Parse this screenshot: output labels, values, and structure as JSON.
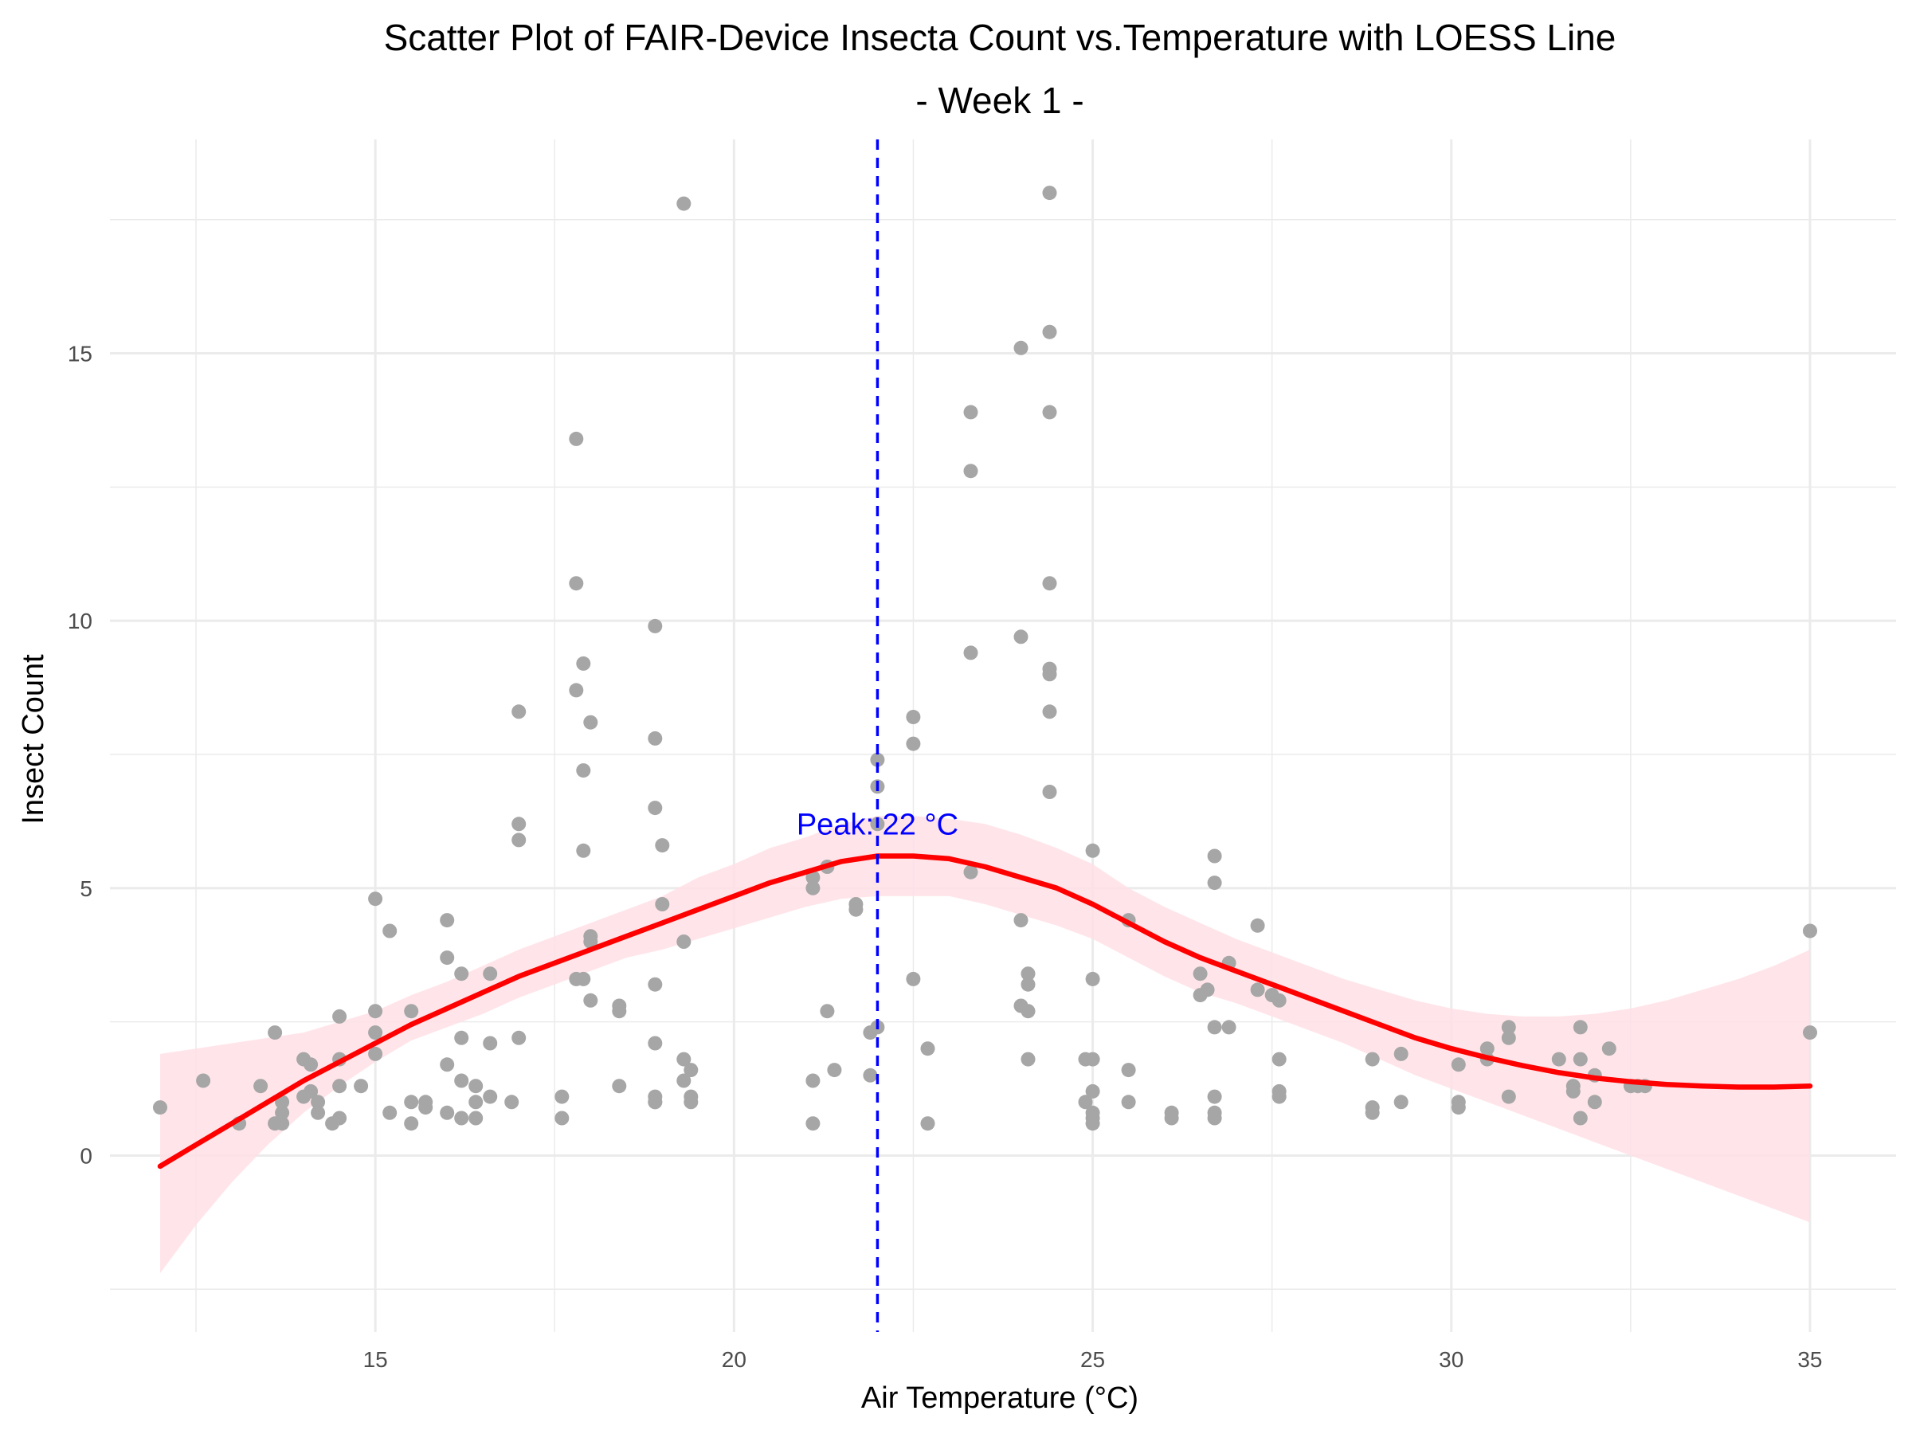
{
  "chart_data": {
    "type": "scatter",
    "title": "Scatter Plot of FAIR-Device Insecta Count vs.Temperature with LOESS Line",
    "subtitle": "- Week 1 -",
    "xlabel": "Air Temperature (°C)",
    "ylabel": "Insect Count",
    "xlim": [
      11.3,
      36.2
    ],
    "ylim": [
      -3.3,
      19.0
    ],
    "x_ticks": [
      15,
      20,
      25,
      30,
      35
    ],
    "y_ticks": [
      0,
      5,
      10,
      15
    ],
    "x_minor_ticks": [
      12.5,
      17.5,
      22.5,
      27.5,
      32.5
    ],
    "y_minor_ticks": [
      -2.5,
      2.5,
      7.5,
      12.5,
      17.5
    ],
    "grid": true,
    "legend": "none",
    "colors": {
      "points": "#a6a6a6",
      "loess": "#ff0000",
      "ribbon": "#ffe0e6",
      "peak_line": "#0000ff",
      "grid": "#ebebeb"
    },
    "points": [
      [
        12.0,
        0.9
      ],
      [
        12.6,
        1.4
      ],
      [
        13.1,
        0.6
      ],
      [
        13.4,
        1.3
      ],
      [
        13.6,
        2.3
      ],
      [
        13.6,
        0.6
      ],
      [
        13.7,
        0.8
      ],
      [
        13.7,
        1.0
      ],
      [
        13.7,
        0.6
      ],
      [
        14.0,
        1.8
      ],
      [
        14.0,
        1.1
      ],
      [
        14.1,
        1.7
      ],
      [
        14.1,
        1.2
      ],
      [
        14.2,
        1.0
      ],
      [
        14.2,
        0.8
      ],
      [
        14.4,
        0.6
      ],
      [
        14.5,
        2.6
      ],
      [
        14.5,
        1.8
      ],
      [
        14.5,
        1.3
      ],
      [
        14.5,
        0.7
      ],
      [
        14.8,
        1.3
      ],
      [
        15.0,
        4.8
      ],
      [
        15.0,
        2.7
      ],
      [
        15.0,
        2.3
      ],
      [
        15.0,
        1.9
      ],
      [
        15.2,
        4.2
      ],
      [
        15.2,
        0.8
      ],
      [
        15.5,
        2.7
      ],
      [
        15.5,
        1.0
      ],
      [
        15.5,
        0.6
      ],
      [
        15.7,
        0.9
      ],
      [
        15.7,
        1.0
      ],
      [
        16.0,
        4.4
      ],
      [
        16.0,
        3.7
      ],
      [
        16.0,
        1.7
      ],
      [
        16.0,
        0.8
      ],
      [
        16.2,
        3.4
      ],
      [
        16.2,
        2.2
      ],
      [
        16.2,
        1.4
      ],
      [
        16.2,
        0.7
      ],
      [
        16.4,
        1.3
      ],
      [
        16.4,
        1.0
      ],
      [
        16.4,
        0.7
      ],
      [
        16.6,
        3.4
      ],
      [
        16.6,
        2.1
      ],
      [
        16.6,
        1.1
      ],
      [
        16.9,
        1.0
      ],
      [
        17.0,
        8.3
      ],
      [
        17.0,
        6.2
      ],
      [
        17.0,
        5.9
      ],
      [
        17.0,
        2.2
      ],
      [
        17.6,
        1.1
      ],
      [
        17.6,
        0.7
      ],
      [
        17.8,
        13.4
      ],
      [
        17.8,
        10.7
      ],
      [
        17.8,
        8.7
      ],
      [
        17.8,
        3.3
      ],
      [
        17.9,
        9.2
      ],
      [
        17.9,
        7.2
      ],
      [
        17.9,
        5.7
      ],
      [
        17.9,
        3.3
      ],
      [
        18.0,
        8.1
      ],
      [
        18.0,
        4.1
      ],
      [
        18.0,
        4.0
      ],
      [
        18.0,
        2.9
      ],
      [
        18.4,
        2.8
      ],
      [
        18.4,
        2.7
      ],
      [
        18.4,
        1.3
      ],
      [
        18.9,
        9.9
      ],
      [
        18.9,
        7.8
      ],
      [
        18.9,
        6.5
      ],
      [
        18.9,
        3.2
      ],
      [
        18.9,
        2.1
      ],
      [
        18.9,
        1.1
      ],
      [
        18.9,
        1.0
      ],
      [
        18.9,
        1.0
      ],
      [
        19.0,
        5.8
      ],
      [
        19.0,
        4.7
      ],
      [
        19.3,
        17.8
      ],
      [
        19.3,
        4.0
      ],
      [
        19.3,
        1.8
      ],
      [
        19.3,
        1.4
      ],
      [
        19.4,
        1.6
      ],
      [
        19.4,
        1.1
      ],
      [
        19.4,
        1.0
      ],
      [
        21.1,
        5.2
      ],
      [
        21.1,
        5.0
      ],
      [
        21.1,
        1.4
      ],
      [
        21.1,
        0.6
      ],
      [
        21.3,
        5.4
      ],
      [
        21.3,
        2.7
      ],
      [
        21.4,
        1.6
      ],
      [
        21.7,
        4.7
      ],
      [
        21.7,
        4.6
      ],
      [
        21.9,
        2.3
      ],
      [
        21.9,
        1.5
      ],
      [
        22.0,
        7.4
      ],
      [
        22.0,
        6.9
      ],
      [
        22.0,
        6.2
      ],
      [
        22.0,
        2.4
      ],
      [
        22.5,
        8.2
      ],
      [
        22.5,
        7.7
      ],
      [
        22.5,
        3.3
      ],
      [
        22.7,
        2.0
      ],
      [
        22.7,
        0.6
      ],
      [
        23.3,
        13.9
      ],
      [
        23.3,
        12.8
      ],
      [
        23.3,
        9.4
      ],
      [
        23.3,
        5.3
      ],
      [
        24.0,
        15.1
      ],
      [
        24.0,
        9.7
      ],
      [
        24.0,
        4.4
      ],
      [
        24.0,
        2.8
      ],
      [
        24.1,
        3.4
      ],
      [
        24.1,
        3.2
      ],
      [
        24.1,
        2.7
      ],
      [
        24.1,
        1.8
      ],
      [
        24.4,
        18.0
      ],
      [
        24.4,
        15.4
      ],
      [
        24.4,
        13.9
      ],
      [
        24.4,
        10.7
      ],
      [
        24.4,
        9.1
      ],
      [
        24.4,
        9.0
      ],
      [
        24.4,
        8.3
      ],
      [
        24.4,
        6.8
      ],
      [
        24.9,
        1.8
      ],
      [
        24.9,
        1.0
      ],
      [
        25.0,
        5.7
      ],
      [
        25.0,
        3.3
      ],
      [
        25.0,
        1.8
      ],
      [
        25.0,
        1.2
      ],
      [
        25.0,
        0.8
      ],
      [
        25.0,
        0.7
      ],
      [
        25.0,
        0.6
      ],
      [
        25.5,
        4.4
      ],
      [
        25.5,
        1.6
      ],
      [
        25.5,
        1.0
      ],
      [
        26.1,
        0.8
      ],
      [
        26.1,
        0.7
      ],
      [
        26.5,
        3.4
      ],
      [
        26.5,
        3.0
      ],
      [
        26.6,
        3.1
      ],
      [
        26.7,
        5.6
      ],
      [
        26.7,
        5.1
      ],
      [
        26.7,
        2.4
      ],
      [
        26.7,
        1.1
      ],
      [
        26.7,
        0.8
      ],
      [
        26.7,
        0.7
      ],
      [
        26.9,
        3.6
      ],
      [
        26.9,
        2.4
      ],
      [
        27.3,
        4.3
      ],
      [
        27.3,
        3.1
      ],
      [
        27.5,
        3.0
      ],
      [
        27.6,
        2.9
      ],
      [
        27.6,
        1.8
      ],
      [
        27.6,
        1.2
      ],
      [
        27.6,
        1.1
      ],
      [
        28.9,
        1.8
      ],
      [
        28.9,
        0.9
      ],
      [
        28.9,
        0.8
      ],
      [
        29.3,
        1.9
      ],
      [
        29.3,
        1.0
      ],
      [
        30.1,
        1.7
      ],
      [
        30.1,
        1.0
      ],
      [
        30.1,
        0.9
      ],
      [
        30.5,
        2.0
      ],
      [
        30.5,
        1.8
      ],
      [
        30.8,
        2.4
      ],
      [
        30.8,
        2.2
      ],
      [
        30.8,
        1.1
      ],
      [
        31.5,
        1.8
      ],
      [
        31.7,
        1.3
      ],
      [
        31.7,
        1.2
      ],
      [
        31.8,
        2.4
      ],
      [
        31.8,
        1.8
      ],
      [
        31.8,
        0.7
      ],
      [
        32.0,
        1.5
      ],
      [
        32.0,
        1.0
      ],
      [
        32.2,
        2.0
      ],
      [
        32.5,
        1.3
      ],
      [
        32.6,
        1.3
      ],
      [
        32.7,
        1.3
      ],
      [
        35.0,
        4.2
      ],
      [
        35.0,
        2.3
      ]
    ],
    "loess_line": [
      [
        12.0,
        -0.2
      ],
      [
        12.5,
        0.2
      ],
      [
        13.0,
        0.6
      ],
      [
        13.5,
        1.0
      ],
      [
        14.0,
        1.4
      ],
      [
        14.5,
        1.75
      ],
      [
        15.0,
        2.1
      ],
      [
        15.5,
        2.45
      ],
      [
        16.0,
        2.75
      ],
      [
        16.5,
        3.05
      ],
      [
        17.0,
        3.35
      ],
      [
        17.5,
        3.6
      ],
      [
        18.0,
        3.85
      ],
      [
        18.5,
        4.1
      ],
      [
        19.0,
        4.35
      ],
      [
        19.5,
        4.6
      ],
      [
        20.0,
        4.85
      ],
      [
        20.5,
        5.1
      ],
      [
        21.0,
        5.3
      ],
      [
        21.5,
        5.5
      ],
      [
        22.0,
        5.6
      ],
      [
        22.5,
        5.6
      ],
      [
        23.0,
        5.55
      ],
      [
        23.5,
        5.4
      ],
      [
        24.0,
        5.2
      ],
      [
        24.5,
        5.0
      ],
      [
        25.0,
        4.7
      ],
      [
        25.5,
        4.35
      ],
      [
        26.0,
        4.0
      ],
      [
        26.5,
        3.7
      ],
      [
        27.0,
        3.45
      ],
      [
        27.5,
        3.2
      ],
      [
        28.0,
        2.95
      ],
      [
        28.5,
        2.7
      ],
      [
        29.0,
        2.45
      ],
      [
        29.5,
        2.2
      ],
      [
        30.0,
        2.0
      ],
      [
        30.5,
        1.83
      ],
      [
        31.0,
        1.68
      ],
      [
        31.5,
        1.55
      ],
      [
        32.0,
        1.45
      ],
      [
        32.5,
        1.38
      ],
      [
        33.0,
        1.33
      ],
      [
        33.5,
        1.3
      ],
      [
        34.0,
        1.28
      ],
      [
        34.5,
        1.28
      ],
      [
        35.0,
        1.3
      ]
    ],
    "confidence_band": [
      [
        12.0,
        -2.2,
        1.9
      ],
      [
        12.5,
        -1.3,
        2.0
      ],
      [
        13.0,
        -0.5,
        2.1
      ],
      [
        13.5,
        0.2,
        2.2
      ],
      [
        14.0,
        0.8,
        2.3
      ],
      [
        14.5,
        1.3,
        2.5
      ],
      [
        15.0,
        1.75,
        2.7
      ],
      [
        15.5,
        2.15,
        3.0
      ],
      [
        16.0,
        2.4,
        3.25
      ],
      [
        16.5,
        2.65,
        3.55
      ],
      [
        17.0,
        2.95,
        3.85
      ],
      [
        17.5,
        3.2,
        4.1
      ],
      [
        18.0,
        3.45,
        4.35
      ],
      [
        18.5,
        3.7,
        4.6
      ],
      [
        19.0,
        3.85,
        4.85
      ],
      [
        19.5,
        4.05,
        5.2
      ],
      [
        20.0,
        4.25,
        5.45
      ],
      [
        20.5,
        4.45,
        5.75
      ],
      [
        21.0,
        4.65,
        5.95
      ],
      [
        21.5,
        4.8,
        6.2
      ],
      [
        22.0,
        4.85,
        6.35
      ],
      [
        22.5,
        4.85,
        6.35
      ],
      [
        23.0,
        4.85,
        6.3
      ],
      [
        23.5,
        4.7,
        6.2
      ],
      [
        24.0,
        4.5,
        6.0
      ],
      [
        24.5,
        4.3,
        5.75
      ],
      [
        25.0,
        4.05,
        5.45
      ],
      [
        25.5,
        3.7,
        5.0
      ],
      [
        26.0,
        3.35,
        4.65
      ],
      [
        26.5,
        3.05,
        4.35
      ],
      [
        27.0,
        2.85,
        4.05
      ],
      [
        27.5,
        2.6,
        3.8
      ],
      [
        28.0,
        2.35,
        3.55
      ],
      [
        28.5,
        2.1,
        3.3
      ],
      [
        29.0,
        1.8,
        3.1
      ],
      [
        29.5,
        1.5,
        2.9
      ],
      [
        30.0,
        1.25,
        2.75
      ],
      [
        30.5,
        1.0,
        2.65
      ],
      [
        31.0,
        0.75,
        2.6
      ],
      [
        31.5,
        0.5,
        2.6
      ],
      [
        32.0,
        0.25,
        2.65
      ],
      [
        32.5,
        0.0,
        2.75
      ],
      [
        33.0,
        -0.25,
        2.9
      ],
      [
        33.5,
        -0.5,
        3.1
      ],
      [
        34.0,
        -0.75,
        3.3
      ],
      [
        34.5,
        -1.0,
        3.55
      ],
      [
        35.0,
        -1.25,
        3.85
      ]
    ],
    "peak": {
      "x": 22,
      "label": "Peak: 22 °C",
      "label_y": 6.2
    }
  }
}
